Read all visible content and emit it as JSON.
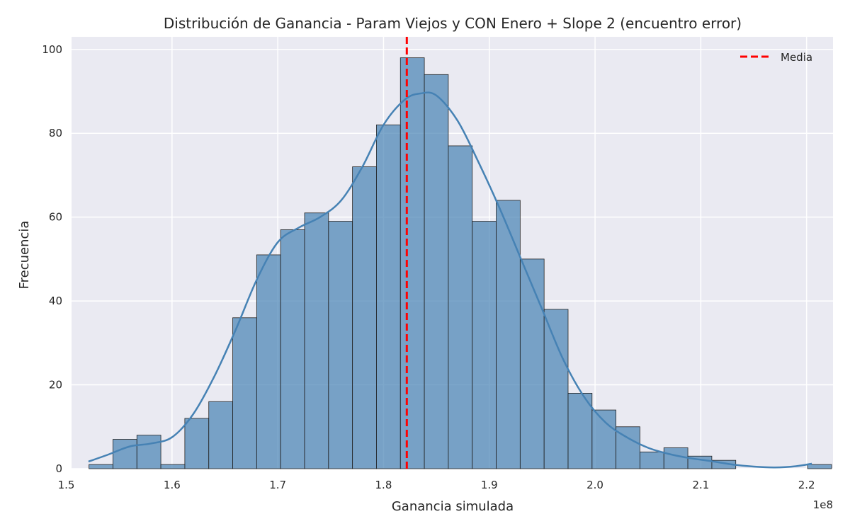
{
  "chart_data": {
    "type": "bar",
    "title": "Distribución de Ganancia - Param Viejos y CON Enero + Slope 2 (encuentro error)",
    "xlabel": "Ganancia simulada",
    "ylabel": "Frecuencia",
    "x_offset_label": "1e8",
    "xlim": [
      1.505,
      2.225
    ],
    "ylim": [
      0,
      103
    ],
    "x_ticks": [
      1.5,
      1.6,
      1.7,
      1.8,
      1.9,
      2.0,
      2.1,
      2.2
    ],
    "x_tick_labels": [
      "1.5",
      "1.6",
      "1.7",
      "1.8",
      "1.9",
      "2.0",
      "2.1",
      "2.2"
    ],
    "y_ticks": [
      0,
      20,
      40,
      60,
      80,
      100
    ],
    "y_tick_labels": [
      "0",
      "20",
      "40",
      "60",
      "80",
      "100"
    ],
    "grid": true,
    "bins": {
      "start": 1.5215,
      "width": 0.02265,
      "counts": [
        1,
        7,
        8,
        1,
        12,
        16,
        36,
        51,
        57,
        61,
        59,
        72,
        82,
        98,
        94,
        77,
        59,
        64,
        50,
        38,
        18,
        14,
        10,
        4,
        5,
        3,
        2,
        0,
        0,
        0,
        1
      ]
    },
    "kde": {
      "x": [
        1.521,
        1.54,
        1.56,
        1.58,
        1.6,
        1.62,
        1.64,
        1.66,
        1.68,
        1.7,
        1.72,
        1.74,
        1.76,
        1.78,
        1.8,
        1.82,
        1.835,
        1.85,
        1.87,
        1.89,
        1.91,
        1.93,
        1.95,
        1.97,
        1.99,
        2.01,
        2.03,
        2.05,
        2.07,
        2.09,
        2.11,
        2.13,
        2.15,
        2.17,
        2.19,
        2.205
      ],
      "y": [
        1.7,
        3.4,
        5.3,
        6.0,
        7.5,
        13.0,
        22.0,
        33.0,
        45.0,
        54.0,
        57.5,
        60.0,
        64.0,
        72.0,
        82.0,
        88.0,
        89.5,
        89.0,
        83.0,
        73.0,
        62.0,
        50.0,
        38.0,
        26.0,
        17.0,
        11.0,
        7.5,
        5.0,
        3.5,
        2.5,
        1.8,
        1.0,
        0.5,
        0.3,
        0.6,
        1.2
      ]
    },
    "mean_line": {
      "x": 1.822,
      "label": "Media",
      "color": "#ff0000"
    },
    "bar_color": "#4682b4",
    "kde_color": "#4682b4",
    "legend": {
      "position": "top-right",
      "entries": [
        "Media"
      ]
    }
  }
}
